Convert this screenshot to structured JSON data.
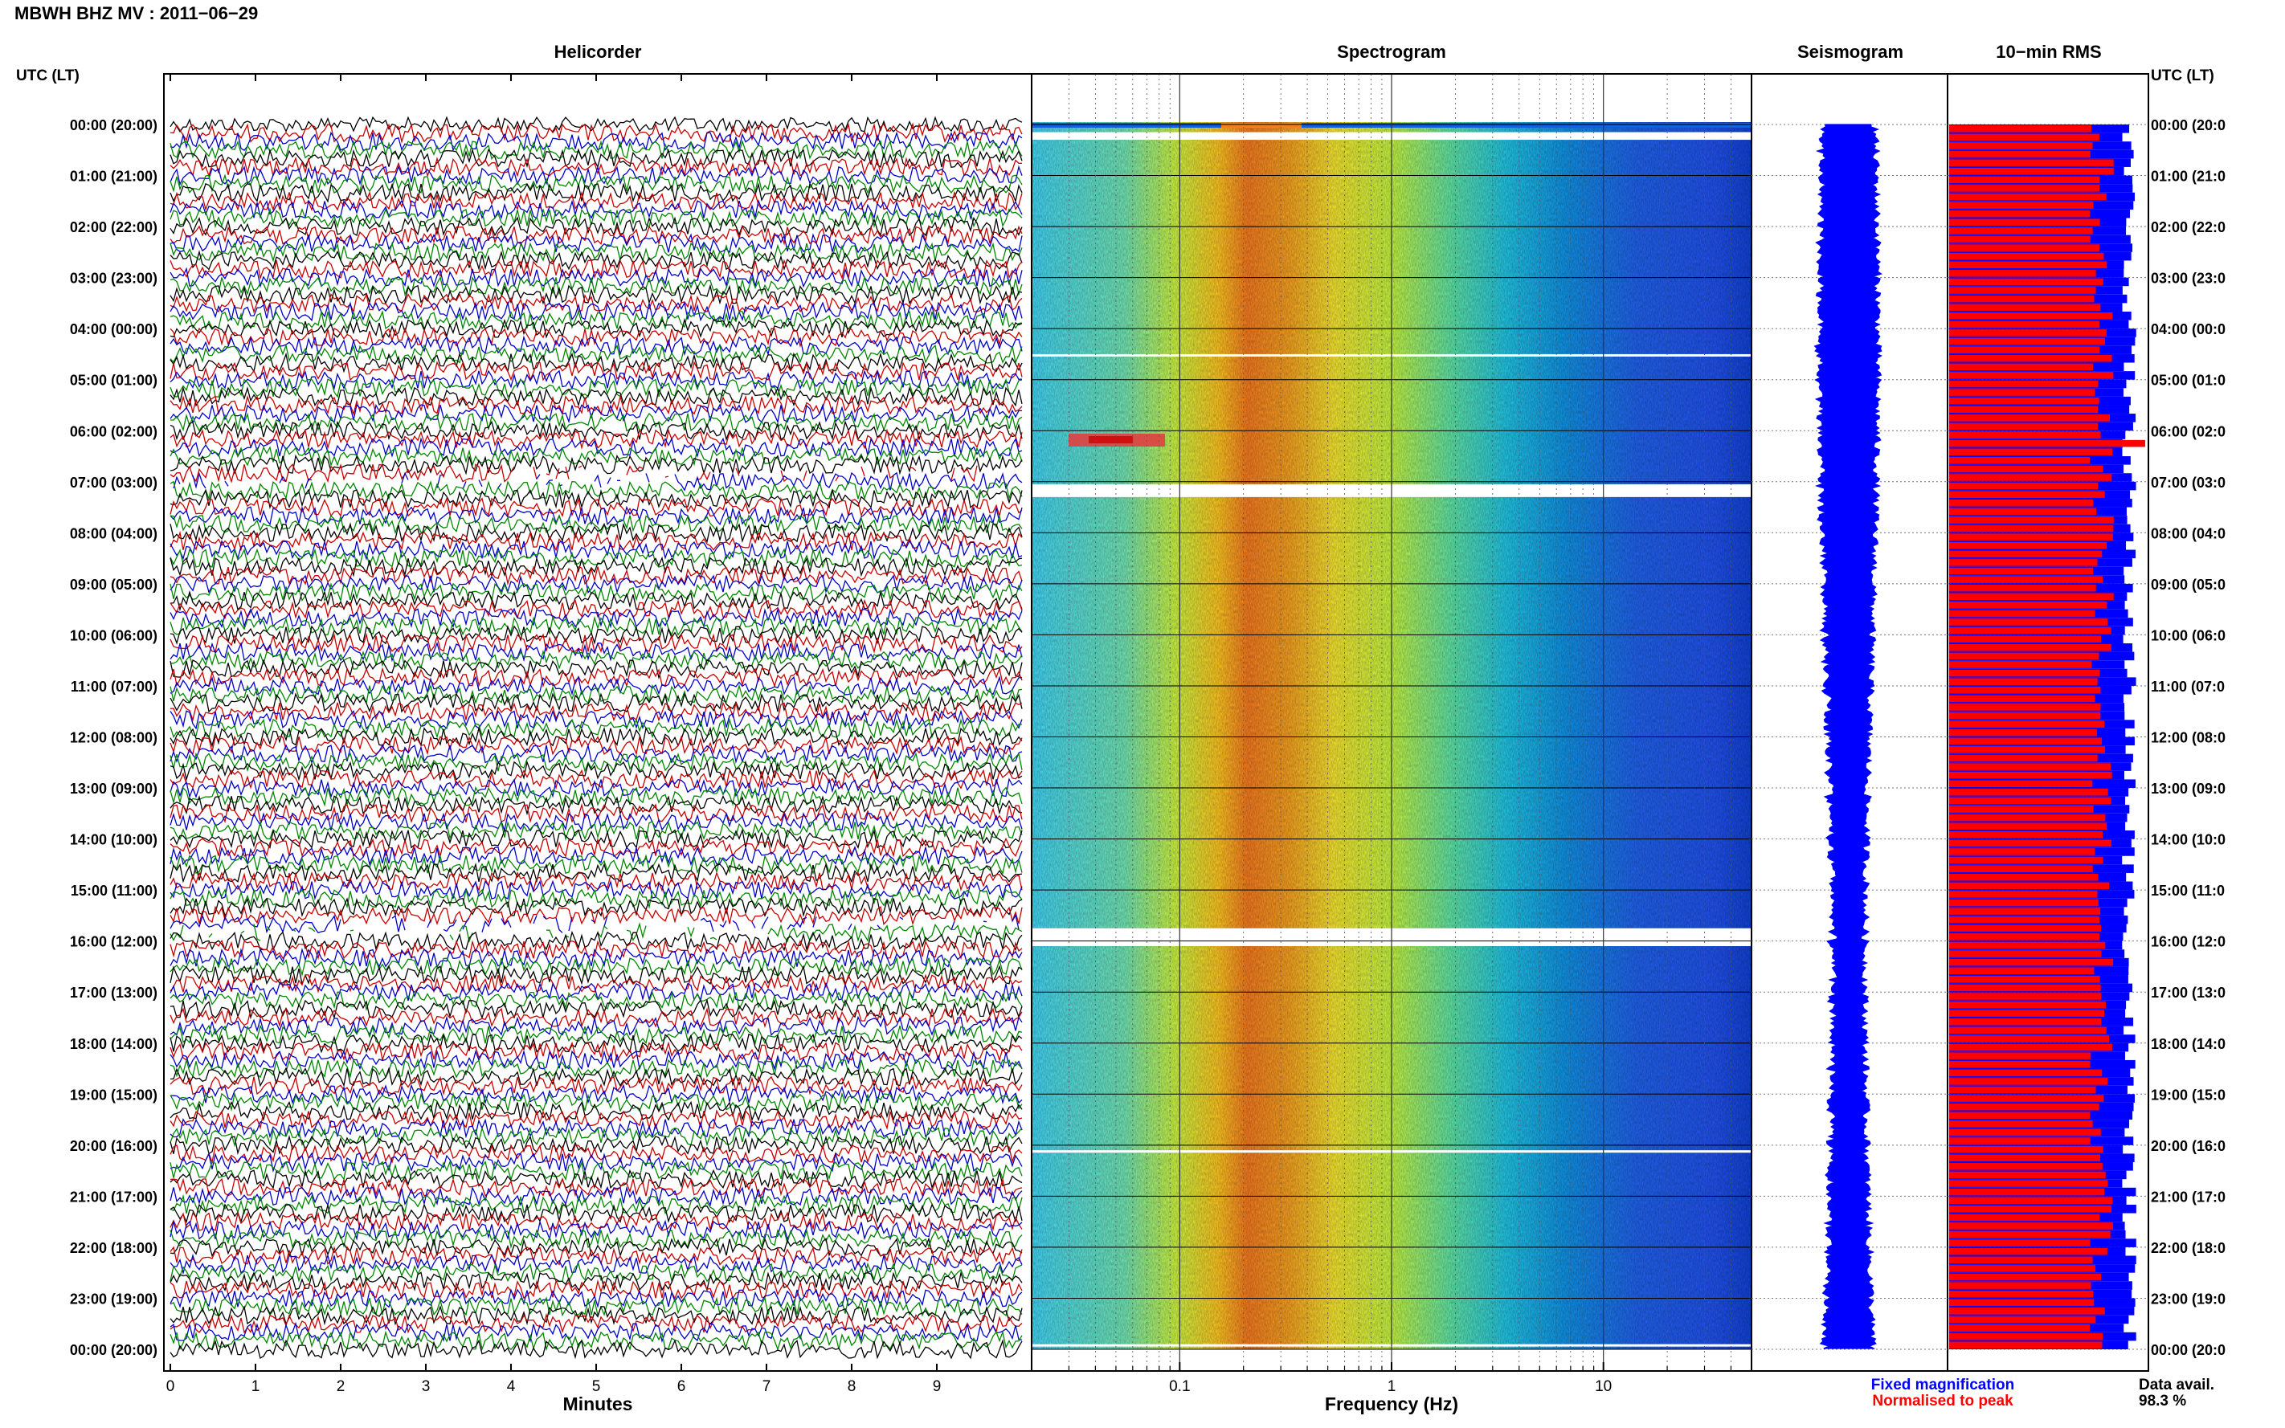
{
  "header": {
    "station_title": "MBWH BHZ MV : 2011−06−29"
  },
  "panels": {
    "helicorder": "Helicorder",
    "spectrogram": "Spectrogram",
    "seismogram": "Seismogram",
    "rms": "10−min RMS"
  },
  "time_axis": {
    "label": "UTC (LT)",
    "ticks": [
      "00:00 (20:00)",
      "01:00 (21:00)",
      "02:00 (22:00)",
      "03:00 (23:00)",
      "04:00 (00:00)",
      "05:00 (01:00)",
      "06:00 (02:00)",
      "07:00 (03:00)",
      "08:00 (04:00)",
      "09:00 (05:00)",
      "10:00 (06:00)",
      "11:00 (07:00)",
      "12:00 (08:00)",
      "13:00 (09:00)",
      "14:00 (10:00)",
      "15:00 (11:00)",
      "16:00 (12:00)",
      "17:00 (13:00)",
      "18:00 (14:00)",
      "19:00 (15:00)",
      "20:00 (16:00)",
      "21:00 (17:00)",
      "22:00 (18:00)",
      "23:00 (19:00)",
      "00:00 (20:00)"
    ],
    "right_ticks": [
      "00:00 (20:0",
      "01:00 (21:0",
      "02:00 (22:0",
      "03:00 (23:0",
      "04:00 (00:0",
      "05:00 (01:0",
      "06:00 (02:0",
      "07:00 (03:0",
      "08:00 (04:0",
      "09:00 (05:0",
      "10:00 (06:0",
      "11:00 (07:0",
      "12:00 (08:0",
      "13:00 (09:0",
      "14:00 (10:0",
      "15:00 (11:0",
      "16:00 (12:0",
      "17:00 (13:0",
      "18:00 (14:0",
      "19:00 (15:0",
      "20:00 (16:0",
      "21:00 (17:0",
      "22:00 (18:0",
      "23:00 (19:0",
      "00:00 (20:0"
    ]
  },
  "footer": {
    "minutes_label": "Minutes",
    "frequency_label": "Frequency (Hz)",
    "legend_fixed": "Fixed magnification",
    "legend_normalised": "Normalised to peak",
    "data_avail_label": "Data avail.",
    "data_avail_value": "98.3 %"
  },
  "colors": {
    "trace_colors": [
      "#000000",
      "#cc0000",
      "#0000cc",
      "#008800"
    ],
    "seismogram": "#0000ff",
    "rms_normalised": "#ff0000",
    "rms_fixed": "#0000ff",
    "legend_fixed": "#0000ff",
    "legend_normalised": "#ff0000"
  },
  "chart_data": [
    {
      "type": "line",
      "panel": "helicorder",
      "title": "Helicorder",
      "xlabel": "Minutes",
      "xticks": [
        "0",
        "1",
        "2",
        "3",
        "4",
        "5",
        "6",
        "7",
        "8",
        "9"
      ],
      "xlim": [
        0,
        10
      ],
      "rows_per_hour": 6,
      "hours": 24,
      "data_gaps_hours": [
        [
          6.9,
          7.1
        ],
        [
          15.7,
          15.95
        ]
      ]
    },
    {
      "type": "heatmap",
      "panel": "spectrogram",
      "title": "Spectrogram",
      "xlabel": "Frequency (Hz)",
      "xscale": "log",
      "xlim": [
        0.02,
        50
      ],
      "xticks": [
        "0.1",
        "1",
        "10"
      ],
      "dominant_band_hz": [
        0.2,
        0.4
      ],
      "data_gaps_hours": [
        [
          0.15,
          0.3
        ],
        [
          7.05,
          7.3
        ],
        [
          15.75,
          16.1
        ]
      ]
    },
    {
      "type": "line",
      "panel": "seismogram",
      "title": "Seismogram"
    },
    {
      "type": "bar",
      "panel": "rms",
      "title": "10−min RMS",
      "series": [
        {
          "name": "Fixed magnification"
        },
        {
          "name": "Normalised to peak"
        }
      ],
      "interval_minutes": 10,
      "data_availability_percent": 98.3
    }
  ]
}
